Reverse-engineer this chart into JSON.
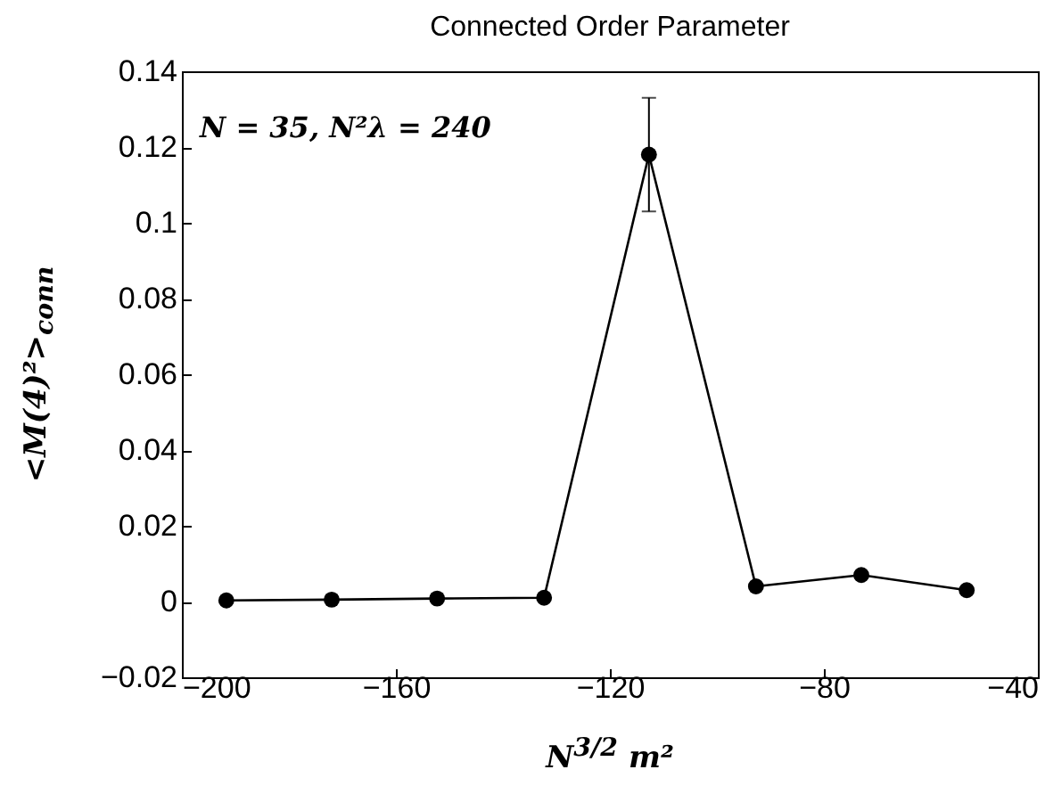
{
  "chart_data": {
    "type": "line",
    "title": "Connected Order Parameter",
    "xlabel": "N$^{3/2}$ m²",
    "ylabel": "<M(4)²>$_{conn}$",
    "x": [
      -191.7,
      -172,
      -152.3,
      -132.3,
      -112.7,
      -92.7,
      -73,
      -53.3
    ],
    "series": [
      {
        "color": "#000000",
        "values": [
          0.0003,
          0.0005,
          0.0008,
          0.001,
          0.118,
          0.004,
          0.007,
          0.003
        ],
        "errors": [
          null,
          null,
          null,
          null,
          0.015,
          null,
          null,
          null
        ]
      }
    ],
    "xlim": [
      -200,
      -40
    ],
    "xticks": [
      -200,
      -160,
      -120,
      -80,
      -40
    ],
    "ylim": [
      -0.02,
      0.14
    ],
    "yticks": [
      -0.02,
      0,
      0.02,
      0.04,
      0.06,
      0.08,
      0.1,
      0.12,
      0.14
    ],
    "annotations": [
      "N = 35,  N²λ = 240"
    ],
    "grid": false,
    "marker": "circle",
    "line_style": "solid"
  }
}
